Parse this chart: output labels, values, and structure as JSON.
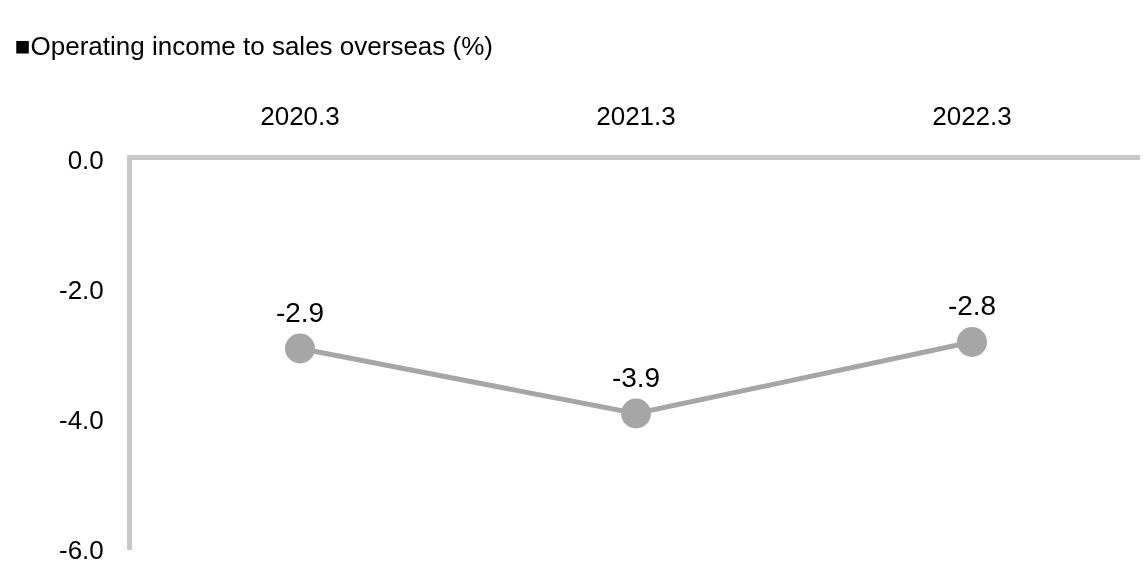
{
  "chart_data": {
    "type": "line",
    "title": "■Operating income to sales overseas (%)",
    "categories": [
      "2020.3",
      "2021.3",
      "2022.3"
    ],
    "series": [
      {
        "color": "#a6a6a6",
        "values": [
          -2.9,
          -3.9,
          -2.8
        ]
      }
    ],
    "ylim": [
      -6,
      0
    ],
    "yticks": [
      {
        "value": 0,
        "label": "0.0"
      },
      {
        "value": -2,
        "label": "-2.0"
      },
      {
        "value": -4,
        "label": "-4.0"
      },
      {
        "value": -6,
        "label": "-6.0"
      }
    ],
    "legend": false,
    "marker": "circle",
    "line_style": "solid",
    "data_labels": true
  }
}
